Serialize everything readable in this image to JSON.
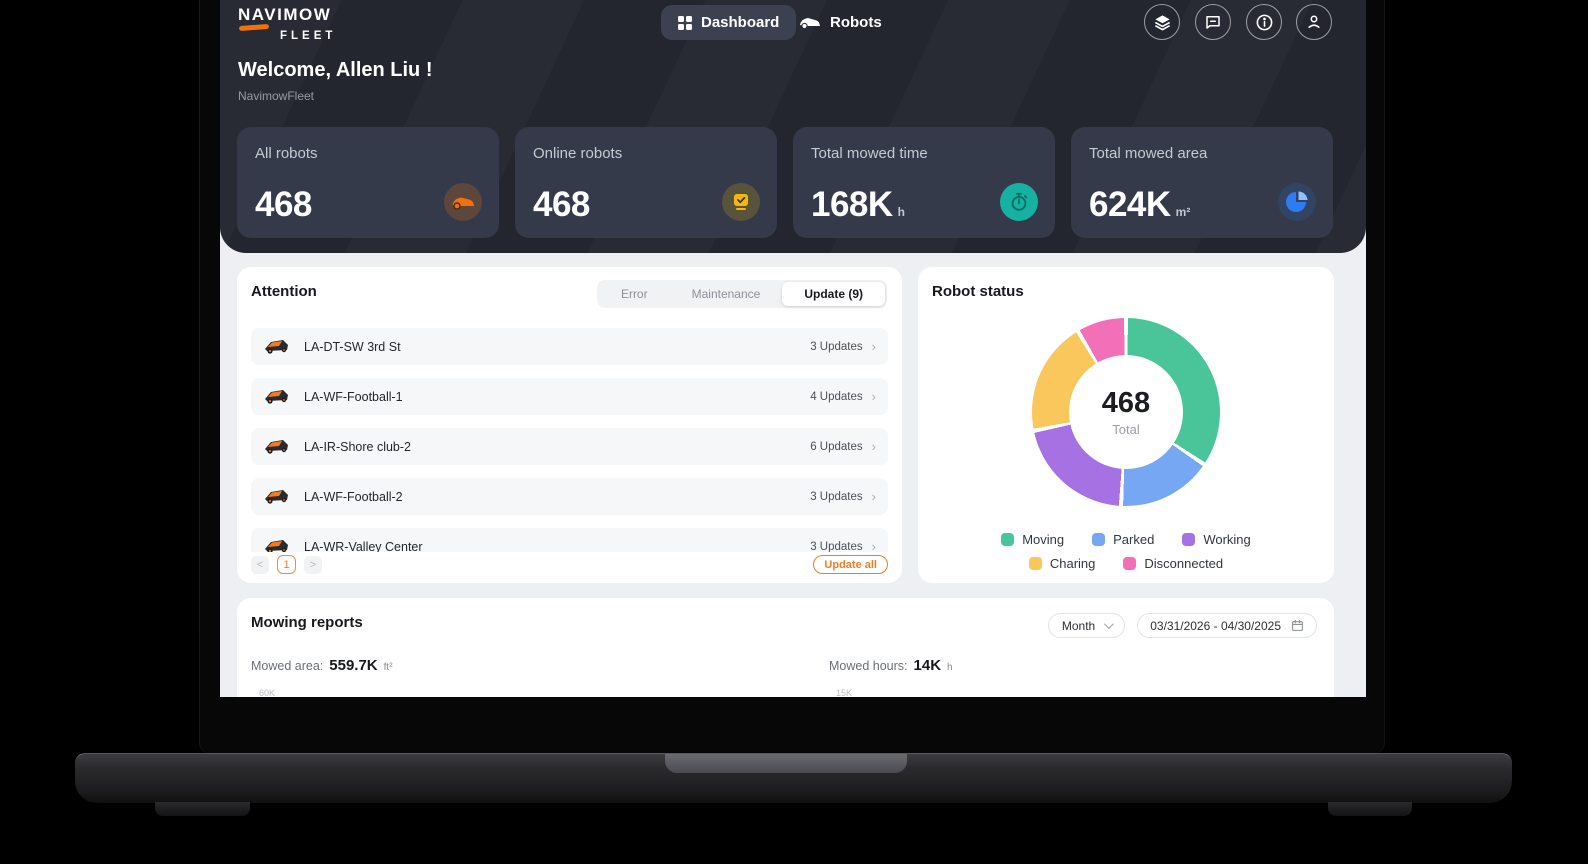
{
  "nav": {
    "logo_line1": "NAVIMOW",
    "logo_line2": "FLEET",
    "tabs": [
      {
        "label": "Dashboard"
      },
      {
        "label": "Robots"
      }
    ],
    "icon_buttons": [
      "layers-icon",
      "message-icon",
      "info-icon",
      "user-icon"
    ]
  },
  "welcome": {
    "title": "Welcome, Allen Liu !",
    "subtitle": "NavimowFleet"
  },
  "stats": [
    {
      "label": "All robots",
      "value": "468",
      "unit": "",
      "icon": "mower-icon",
      "accent": "#f3700f"
    },
    {
      "label": "Online robots",
      "value": "468",
      "unit": "",
      "icon": "check-square-icon",
      "accent": "#f5b80c"
    },
    {
      "label": "Total mowed time",
      "value": "168K",
      "unit": "h",
      "icon": "stopwatch-icon",
      "accent": "#17b1a1"
    },
    {
      "label": "Total mowed area",
      "value": "624K",
      "unit": "m²",
      "icon": "pie-icon",
      "accent": "#2e7bf3"
    }
  ],
  "attention": {
    "title": "Attention",
    "tabs": [
      "Error",
      "Maintenance",
      "Update (9)"
    ],
    "active_tab": "Update (9)",
    "rows": [
      {
        "name": "LA-DT-SW 3rd St",
        "updates": "3 Updates"
      },
      {
        "name": "LA-WF-Football-1",
        "updates": "4 Updates"
      },
      {
        "name": "LA-IR-Shore club-2",
        "updates": "6 Updates"
      },
      {
        "name": "LA-WF-Football-2",
        "updates": "3 Updates"
      },
      {
        "name": "LA-WR-Valley Center",
        "updates": "3 Updates"
      }
    ],
    "pagination": {
      "prev": "<",
      "page": "1",
      "next": ">"
    },
    "update_all_label": "Update all"
  },
  "robot_status": {
    "title": "Robot status",
    "total": "468",
    "total_label": "Total",
    "chart": {
      "type": "pie",
      "segments": [
        {
          "label": "Moving",
          "value": 161,
          "color": "#4ac59a"
        },
        {
          "label": "Parked",
          "value": 77,
          "color": "#76a7f3"
        },
        {
          "label": "Working",
          "value": 98,
          "color": "#a671e3"
        },
        {
          "label": "Charing",
          "value": 92,
          "color": "#f9c75c"
        },
        {
          "label": "Disconnected",
          "value": 40,
          "color": "#f170b8"
        }
      ]
    }
  },
  "mowing_reports": {
    "title": "Mowing reports",
    "period_selector": "Month",
    "date_range": "03/31/2026 - 04/30/2025",
    "mowed_area_label": "Mowed area:",
    "mowed_area_value": "559.7K",
    "mowed_area_unit": "ft²",
    "mowed_hours_label": "Mowed hours:",
    "mowed_hours_value": "14K",
    "mowed_hours_unit": "h",
    "left_chart_tick": "60K",
    "right_chart_tick": "15K"
  }
}
